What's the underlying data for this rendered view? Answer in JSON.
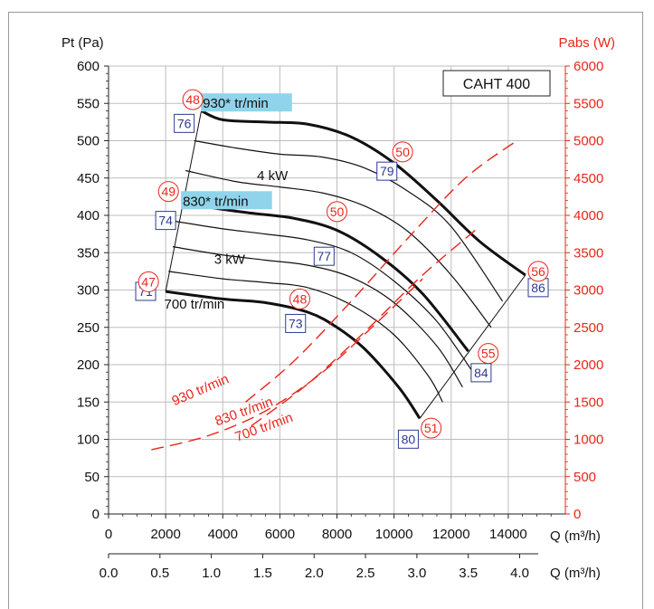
{
  "chart_data": {
    "type": "line",
    "title": "",
    "model_box": "CAHT 400",
    "ylabel_left": "Pt (Pa)",
    "ylabel_right": "Pabs (W)",
    "xlabel_main": "Q (m³/h)",
    "xlabel_secondary": "Q (m³/h)",
    "x_ticks": [
      "0",
      "2000",
      "4000",
      "6000",
      "8000",
      "10000",
      "12000",
      "14000"
    ],
    "x2_ticks": [
      "0.0",
      "0.5",
      "1.0",
      "1.5",
      "2.0",
      "2.5",
      "3.0",
      "3.5",
      "4.0"
    ],
    "y_ticks": [
      "0",
      "50",
      "100",
      "150",
      "200",
      "250",
      "300",
      "350",
      "400",
      "450",
      "500",
      "550",
      "600"
    ],
    "y2_ticks": [
      "0",
      "500",
      "1000",
      "1500",
      "2000",
      "2500",
      "3000",
      "3500",
      "4000",
      "4500",
      "5000",
      "5500",
      "6000"
    ],
    "xlim": [
      0,
      16000
    ],
    "ylim": [
      0,
      600
    ],
    "y2lim": [
      0,
      6000
    ],
    "grid": true,
    "pressure_curves": [
      {
        "name": "930* tr/min",
        "bold": true,
        "points": [
          [
            3250,
            540
          ],
          [
            4000,
            528
          ],
          [
            5500,
            525
          ],
          [
            7000,
            522
          ],
          [
            8500,
            505
          ],
          [
            10000,
            470
          ],
          [
            11500,
            420
          ],
          [
            13000,
            365
          ],
          [
            14600,
            320
          ]
        ]
      },
      {
        "name": "",
        "bold": false,
        "points": [
          [
            3000,
            500
          ],
          [
            4500,
            490
          ],
          [
            6000,
            482
          ],
          [
            7500,
            478
          ],
          [
            9000,
            463
          ],
          [
            10500,
            432
          ],
          [
            12000,
            385
          ],
          [
            13800,
            285
          ]
        ]
      },
      {
        "name": "",
        "bold": false,
        "points": [
          [
            2700,
            460
          ],
          [
            4500,
            445
          ],
          [
            6000,
            438
          ],
          [
            7500,
            430
          ],
          [
            9000,
            412
          ],
          [
            10500,
            378
          ],
          [
            12000,
            320
          ],
          [
            13400,
            250
          ]
        ]
      },
      {
        "name": "830* tr/min",
        "bold": true,
        "points": [
          [
            2550,
            420
          ],
          [
            3500,
            411
          ],
          [
            5000,
            403
          ],
          [
            6500,
            396
          ],
          [
            8000,
            380
          ],
          [
            9500,
            345
          ],
          [
            11000,
            295
          ],
          [
            12600,
            218
          ]
        ]
      },
      {
        "name": "",
        "bold": false,
        "points": [
          [
            2350,
            392
          ],
          [
            4000,
            382
          ],
          [
            5500,
            375
          ],
          [
            7000,
            367
          ],
          [
            8500,
            350
          ],
          [
            10000,
            312
          ],
          [
            11500,
            258
          ],
          [
            12900,
            182
          ]
        ]
      },
      {
        "name": "",
        "bold": false,
        "points": [
          [
            2250,
            358
          ],
          [
            4000,
            347
          ],
          [
            5500,
            340
          ],
          [
            7000,
            333
          ],
          [
            8500,
            317
          ],
          [
            10000,
            283
          ],
          [
            11500,
            225
          ],
          [
            12400,
            170
          ]
        ]
      },
      {
        "name": "",
        "bold": false,
        "points": [
          [
            2100,
            325
          ],
          [
            4000,
            315
          ],
          [
            5500,
            310
          ],
          [
            7000,
            303
          ],
          [
            8500,
            280
          ],
          [
            10000,
            240
          ],
          [
            11200,
            185
          ],
          [
            11700,
            150
          ]
        ]
      },
      {
        "name": "700 tr/min",
        "bold": true,
        "points": [
          [
            2000,
            298
          ],
          [
            4000,
            288
          ],
          [
            5500,
            283
          ],
          [
            7000,
            270
          ],
          [
            8000,
            250
          ],
          [
            9000,
            220
          ],
          [
            10200,
            168
          ],
          [
            10900,
            128
          ]
        ]
      }
    ],
    "curve_labels": [
      {
        "text": "930* tr/min",
        "highlight": true,
        "x": 3300,
        "y": 544
      },
      {
        "text": "830* tr/min",
        "highlight": true,
        "x": 2600,
        "y": 413
      },
      {
        "text": "700 tr/min",
        "highlight": false,
        "x": 1950,
        "y": 275
      },
      {
        "text": "4 kW",
        "highlight": false,
        "x": 5200,
        "y": 447
      },
      {
        "text": "3 kW",
        "highlight": false,
        "x": 3700,
        "y": 335
      }
    ],
    "power_curves": [
      {
        "name": "930 tr/min",
        "points": [
          [
            4800,
            1500
          ],
          [
            6500,
            2050
          ],
          [
            8500,
            2850
          ],
          [
            10500,
            3700
          ],
          [
            12500,
            4500
          ],
          [
            14300,
            5000
          ]
        ]
      },
      {
        "name": "830 tr/min",
        "points": [
          [
            5000,
            1180
          ],
          [
            7000,
            1750
          ],
          [
            9000,
            2450
          ],
          [
            11000,
            3200
          ],
          [
            13000,
            3850
          ]
        ]
      },
      {
        "name": "700 tr/min",
        "points": [
          [
            1500,
            860
          ],
          [
            3500,
            1050
          ],
          [
            5500,
            1380
          ],
          [
            7500,
            1900
          ],
          [
            9500,
            2600
          ],
          [
            11000,
            3150
          ]
        ]
      }
    ],
    "power_labels": [
      {
        "text": "930 tr/min",
        "x": 2300,
        "y": 145,
        "angle": -23
      },
      {
        "text": "830 tr/min",
        "x": 3800,
        "y": 118,
        "angle": -20
      },
      {
        "text": "700 tr/min",
        "x": 4500,
        "y": 97,
        "angle": -20
      }
    ],
    "boundary_lines": [
      {
        "points": [
          [
            2000,
            298
          ],
          [
            3250,
            540
          ]
        ]
      },
      {
        "points": [
          [
            10900,
            128
          ],
          [
            14600,
            320
          ]
        ]
      }
    ],
    "blue_markers": [
      {
        "text": "76",
        "x": 2650,
        "y": 522
      },
      {
        "text": "79",
        "x": 9750,
        "y": 458
      },
      {
        "text": "74",
        "x": 2000,
        "y": 392
      },
      {
        "text": "77",
        "x": 7550,
        "y": 344
      },
      {
        "text": "71",
        "x": 1300,
        "y": 297
      },
      {
        "text": "73",
        "x": 6550,
        "y": 254
      },
      {
        "text": "84",
        "x": 13050,
        "y": 188
      },
      {
        "text": "86",
        "x": 15050,
        "y": 302
      },
      {
        "text": "80",
        "x": 10500,
        "y": 99
      }
    ],
    "red_markers": [
      {
        "text": "48",
        "x": 2950,
        "y": 555
      },
      {
        "text": "50",
        "x": 10300,
        "y": 485
      },
      {
        "text": "49",
        "x": 2100,
        "y": 432
      },
      {
        "text": "50",
        "x": 8000,
        "y": 405
      },
      {
        "text": "47",
        "x": 1400,
        "y": 311
      },
      {
        "text": "48",
        "x": 6700,
        "y": 288
      },
      {
        "text": "55",
        "x": 13300,
        "y": 215
      },
      {
        "text": "56",
        "x": 15050,
        "y": 325
      },
      {
        "text": "51",
        "x": 11300,
        "y": 115
      }
    ]
  }
}
